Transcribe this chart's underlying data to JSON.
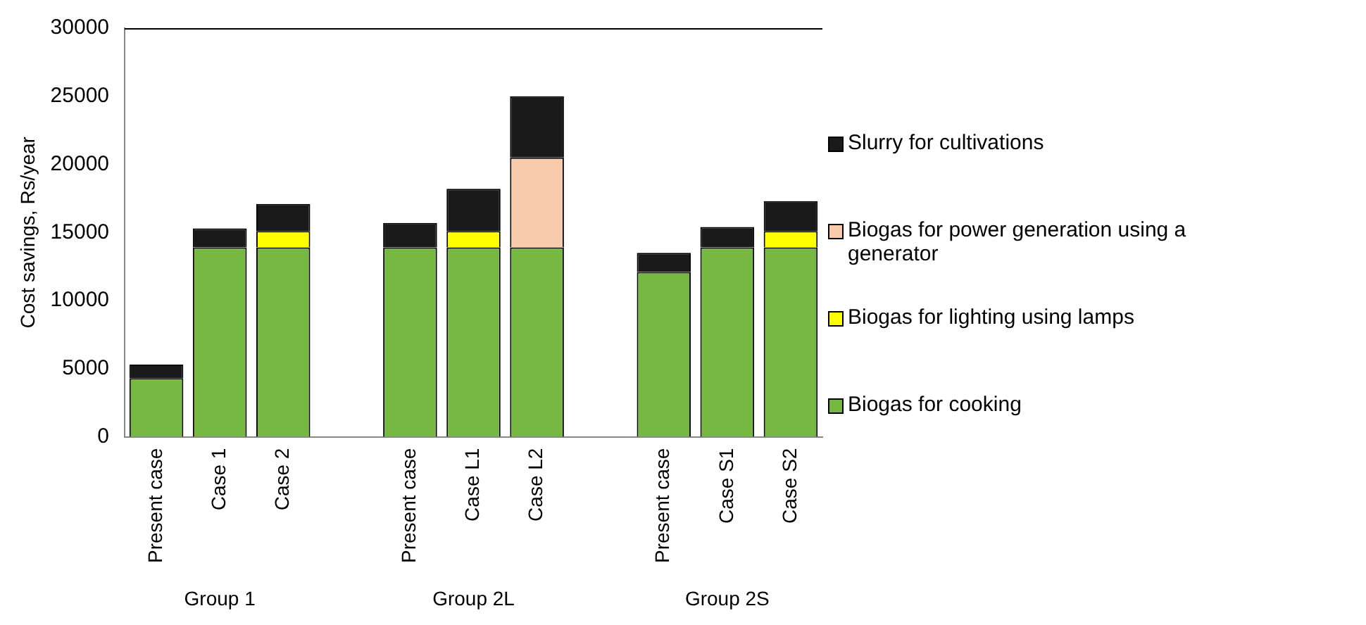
{
  "chart_data": {
    "type": "bar",
    "stacked": true,
    "ylabel": "Cost savings, Rs/year",
    "categories": [
      "Present case",
      "Case 1",
      "Case 2",
      null,
      "Present case",
      "Case L1",
      "Case L2",
      null,
      "Present case",
      "Case S1",
      "Case S2"
    ],
    "series": [
      {
        "name": "Biogas for cooking",
        "color": "#77b843",
        "values": [
          4300,
          13900,
          13900,
          null,
          13900,
          13900,
          13900,
          null,
          12100,
          13900,
          13900
        ]
      },
      {
        "name": "Biogas for lighting using lamps",
        "color": "#ffff00",
        "values": [
          null,
          null,
          1200,
          null,
          null,
          1200,
          null,
          null,
          null,
          null,
          1200
        ]
      },
      {
        "name": "Biogas for power generation using a generator",
        "color": "#f8cbad",
        "values": [
          null,
          null,
          null,
          null,
          null,
          null,
          6600,
          null,
          null,
          null,
          null
        ]
      },
      {
        "name": "Slurry for cultivations",
        "color": "#1a1a1a",
        "values": [
          1000,
          1400,
          2000,
          null,
          1800,
          3100,
          4500,
          null,
          1400,
          1500,
          2200
        ]
      }
    ],
    "annotations": [
      "Group 1",
      "Group 2L",
      "Group 2S"
    ],
    "ylim": [
      0,
      30000
    ],
    "yticks": [
      0,
      5000,
      10000,
      15000,
      20000,
      25000,
      30000
    ],
    "grid": false,
    "legend": "right"
  }
}
